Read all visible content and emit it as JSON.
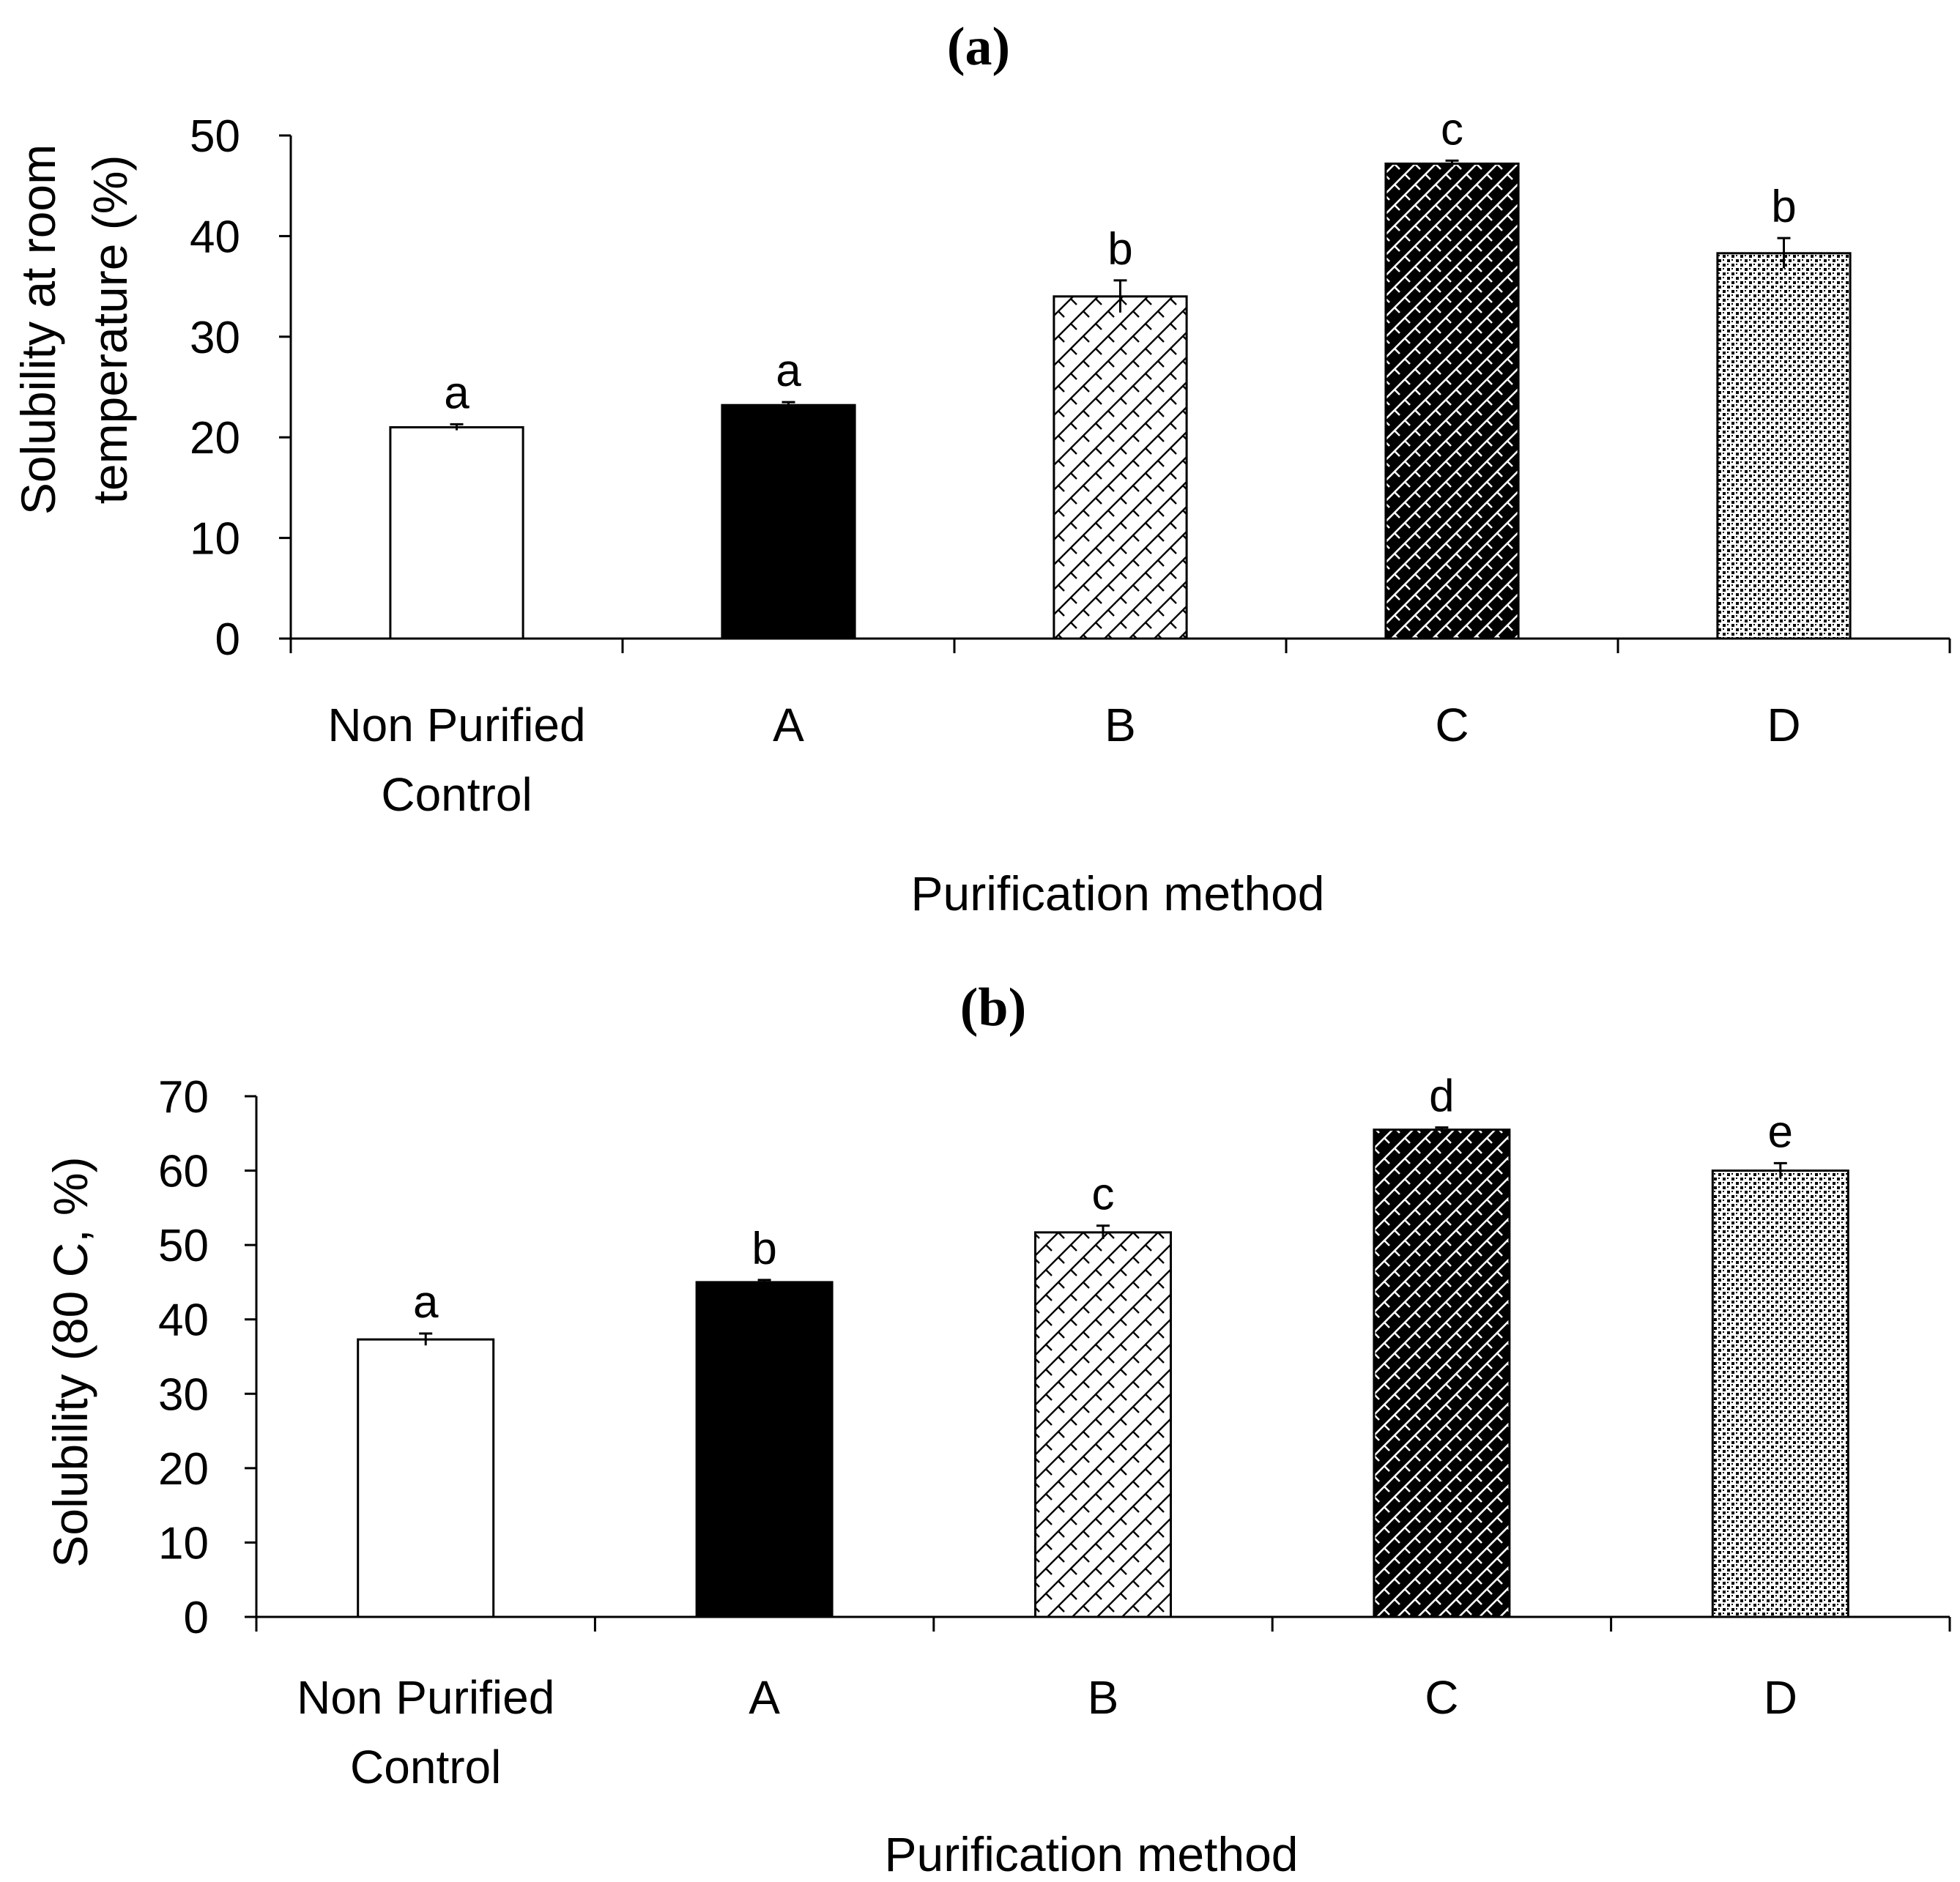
{
  "chart_data": [
    {
      "type": "bar",
      "title": "(a)",
      "xlabel": "Purification method",
      "ylabel_lines": [
        "Solubility at room",
        "temperature (%)"
      ],
      "ylim": [
        0,
        50
      ],
      "yticks": [
        0,
        10,
        20,
        30,
        40,
        50
      ],
      "categories": [
        {
          "lines": [
            "Non Purified",
            "Control"
          ]
        },
        {
          "lines": [
            "A"
          ]
        },
        {
          "lines": [
            "B"
          ]
        },
        {
          "lines": [
            "C"
          ]
        },
        {
          "lines": [
            "D"
          ]
        }
      ],
      "values": [
        21,
        23.2,
        34,
        47.2,
        38.3
      ],
      "errors": [
        0.3,
        0.3,
        1.6,
        0.3,
        1.5
      ],
      "significance": [
        "a",
        "a",
        "b",
        "c",
        "b"
      ],
      "fills": [
        "white",
        "black",
        "diagonal-light",
        "diagonal-dark",
        "dots"
      ],
      "grid": false
    },
    {
      "type": "bar",
      "title": "(b)",
      "xlabel": "Purification method",
      "ylabel_lines": [
        "Solubility (80 C, %)"
      ],
      "ylim": [
        0,
        70
      ],
      "yticks": [
        0,
        10,
        20,
        30,
        40,
        50,
        60,
        70
      ],
      "categories": [
        {
          "lines": [
            "Non Purified",
            "Control"
          ]
        },
        {
          "lines": [
            "A"
          ]
        },
        {
          "lines": [
            "B"
          ]
        },
        {
          "lines": [
            "C"
          ]
        },
        {
          "lines": [
            "D"
          ]
        }
      ],
      "values": [
        37.3,
        45,
        51.7,
        65.5,
        60
      ],
      "errors": [
        0.8,
        0.3,
        0.9,
        0.3,
        1
      ],
      "significance": [
        "a",
        "b",
        "c",
        "d",
        "e"
      ],
      "fills": [
        "white",
        "black",
        "diagonal-light",
        "diagonal-dark",
        "dots"
      ],
      "grid": false
    }
  ]
}
